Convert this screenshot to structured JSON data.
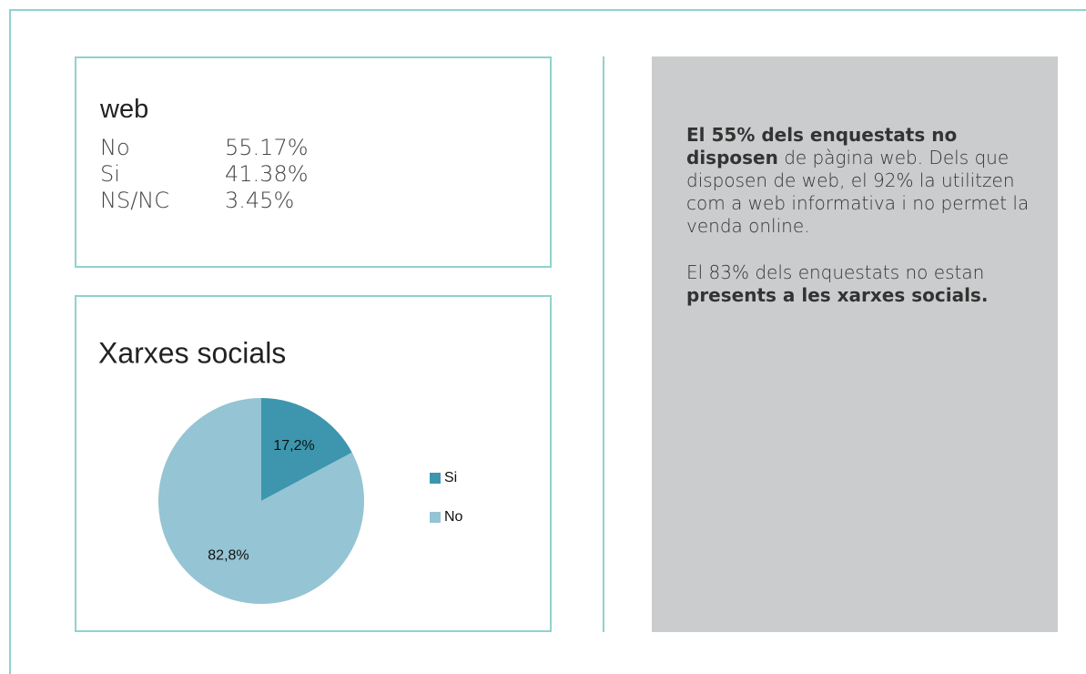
{
  "web": {
    "title": "web",
    "rows": [
      [
        "No",
        "55.17%"
      ],
      [
        "Si",
        "41.38%"
      ],
      [
        "NS/NC",
        "3.45%"
      ]
    ]
  },
  "chart_data": {
    "type": "pie",
    "title": "Xarxes socials",
    "categories": [
      "Si",
      "No"
    ],
    "values": [
      17.2,
      82.8
    ],
    "value_labels": [
      "17,2%",
      "82,8%"
    ],
    "colors": [
      "#3d96ae",
      "#95c4d4"
    ],
    "legend": "right"
  },
  "summary": {
    "paragraphs": [
      [
        {
          "text": "El 55% dels enquestats no disposen",
          "bold": true
        },
        {
          "text": " de pàgina web. Dels que disposen de web, el 92% la utilitzen com a web informativa i no permet la venda online.",
          "bold": false
        }
      ],
      [
        {
          "text": "El 83% dels enquestats no estan ",
          "bold": false
        },
        {
          "text": "presents a les xarxes socials.",
          "bold": true
        }
      ]
    ]
  }
}
